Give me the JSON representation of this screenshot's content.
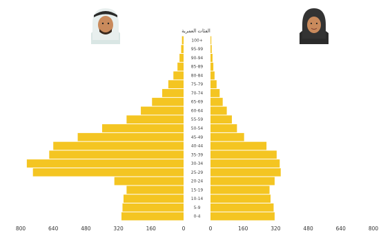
{
  "colors": {
    "bar": "#F4C522",
    "divider": "#ffffff",
    "text": "#333333"
  },
  "icons": {
    "male": "man-in-ghutra-avatar-icon",
    "female": "woman-in-hijab-avatar-icon"
  },
  "chart_data": {
    "type": "bar",
    "orientation": "horizontal-population-pyramid",
    "title": "",
    "center_label": "الفئات العمرية",
    "categories": [
      "0-4",
      "5-9",
      "10-14",
      "15-19",
      "20-24",
      "25-29",
      "30-34",
      "35-39",
      "40-44",
      "45-49",
      "50-54",
      "55-59",
      "60-64",
      "65-69",
      "70-74",
      "75-79",
      "80-84",
      "85-89",
      "90-94",
      "95-99",
      "100+"
    ],
    "series": [
      {
        "side": "left",
        "values": [
          305,
          300,
          295,
          280,
          340,
          740,
          770,
          660,
          640,
          520,
          400,
          280,
          210,
          155,
          105,
          75,
          50,
          30,
          20,
          12,
          8
        ]
      },
      {
        "side": "right",
        "values": [
          315,
          310,
          295,
          290,
          315,
          345,
          340,
          325,
          275,
          165,
          130,
          105,
          80,
          60,
          45,
          30,
          20,
          14,
          10,
          6,
          4
        ]
      }
    ],
    "x_ticks_left": [
      "800",
      "640",
      "480",
      "320",
      "160",
      "0"
    ],
    "x_ticks_right": [
      "0",
      "160",
      "320",
      "480",
      "640",
      "800"
    ],
    "xlim": [
      0,
      800
    ],
    "grid": false,
    "legend": "none"
  }
}
